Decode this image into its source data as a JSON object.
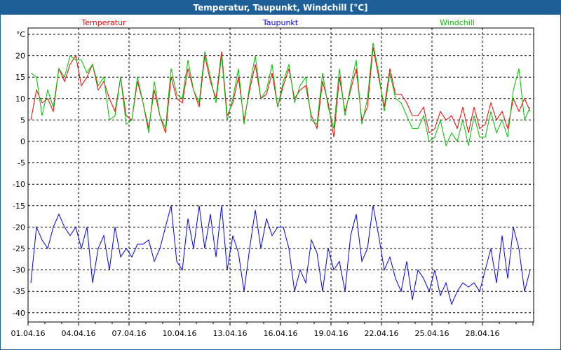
{
  "window": {
    "title": "Temperatur, Taupunkt, Windchill [°C]"
  },
  "chart_data": {
    "type": "line",
    "title": "Temperatur, Taupunkt, Windchill [°C]",
    "ylabel": "°C",
    "ylim": [
      -42,
      25
    ],
    "yticks": [
      20,
      15,
      10,
      5,
      0,
      -5,
      -10,
      -15,
      -20,
      -25,
      -30,
      -35,
      -40
    ],
    "xlim_days": [
      0,
      30
    ],
    "xticks": [
      "01.04.16",
      "04.04.16",
      "07.04.16",
      "10.04.16",
      "13.04.16",
      "16.04.16",
      "19.04.16",
      "22.04.16",
      "25.04.16",
      "28.04.16"
    ],
    "grid": true,
    "legend_placement": "top",
    "samples_per_day": 3,
    "series": [
      {
        "name": "Temperatur",
        "color": "#ff0000",
        "values": [
          5,
          12,
          9,
          10,
          7,
          17,
          14,
          18,
          20,
          13,
          15,
          18,
          12,
          14,
          10,
          7,
          15,
          6,
          5,
          14,
          9,
          3,
          12,
          6,
          2,
          15,
          10,
          9,
          17,
          12,
          8,
          20,
          14,
          10,
          21,
          6,
          9,
          15,
          5,
          12,
          18,
          10,
          11,
          16,
          8,
          13,
          17,
          10,
          12,
          13,
          6,
          3,
          14,
          9,
          1,
          15,
          7,
          12,
          17,
          5,
          8,
          22,
          15,
          8,
          17,
          11,
          11,
          9,
          6,
          6,
          8,
          2,
          3,
          7,
          5,
          6,
          3,
          8,
          2,
          8,
          3,
          4,
          9,
          5,
          7,
          3,
          10,
          7,
          10,
          7
        ]
      },
      {
        "name": "Taupunkt",
        "color": "#0000ff",
        "values": [
          -33,
          -20,
          -23,
          -25,
          -20,
          -17,
          -20,
          -22,
          -20,
          -25,
          -20,
          -33,
          -25,
          -22,
          -30,
          -20,
          -27,
          -25,
          -27,
          -24,
          -24,
          -23,
          -28,
          -25,
          -20,
          -15,
          -28,
          -30,
          -18,
          -25,
          -15,
          -25,
          -17,
          -27,
          -15,
          -30,
          -22,
          -26,
          -35,
          -25,
          -16,
          -25,
          -18,
          -22,
          -20,
          -20,
          -25,
          -35,
          -30,
          -33,
          -23,
          -26,
          -35,
          -25,
          -30,
          -28,
          -35,
          -22,
          -17,
          -28,
          -25,
          -15,
          -22,
          -30,
          -27,
          -32,
          -35,
          -28,
          -37,
          -30,
          -32,
          -35,
          -30,
          -36,
          -33,
          -38,
          -35,
          -33,
          -34,
          -33,
          -35,
          -30,
          -25,
          -33,
          -22,
          -32,
          -20,
          -25,
          -35,
          -30
        ]
      },
      {
        "name": "Windchill",
        "color": "#00c000",
        "values": [
          16,
          15,
          6,
          12,
          8,
          17,
          15,
          20,
          19,
          19,
          16,
          18,
          13,
          15,
          5,
          6,
          15,
          4,
          5,
          15,
          9,
          2,
          14,
          6,
          3,
          17,
          11,
          10,
          19,
          12,
          9,
          21,
          15,
          9,
          20,
          5,
          10,
          17,
          4,
          13,
          20,
          10,
          12,
          18,
          8,
          14,
          18,
          9,
          13,
          15,
          5,
          4,
          16,
          8,
          3,
          17,
          6,
          13,
          19,
          4,
          10,
          23,
          16,
          7,
          16,
          10,
          9,
          6,
          3,
          3,
          6,
          0,
          1,
          5,
          -1,
          2,
          0,
          5,
          -1,
          6,
          1,
          1,
          7,
          2,
          5,
          1,
          12,
          17,
          5,
          8
        ]
      }
    ]
  }
}
